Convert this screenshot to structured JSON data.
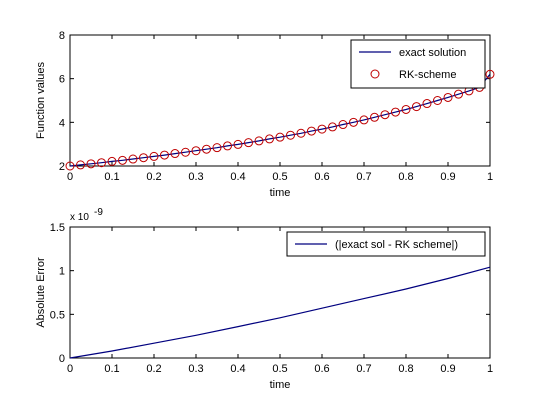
{
  "chart_data": [
    {
      "type": "line",
      "xlabel": "time",
      "ylabel": "Function values",
      "xlim": [
        0,
        1
      ],
      "ylim": [
        2,
        8
      ],
      "xticks": [
        0,
        0.1,
        0.2,
        0.3,
        0.4,
        0.5,
        0.6,
        0.7,
        0.8,
        0.9,
        1
      ],
      "xtick_labels": [
        "0",
        "0.1",
        "0.2",
        "0.3",
        "0.4",
        "0.5",
        "0.6",
        "0.7",
        "0.8",
        "0.9",
        "1"
      ],
      "yticks": [
        2,
        4,
        6,
        8
      ],
      "ytick_labels": [
        "2",
        "4",
        "6",
        "8"
      ],
      "grid": false,
      "legend_position": "top-right",
      "series": [
        {
          "name": "exact solution",
          "style": "line",
          "color": "#00007f",
          "x": [
            0,
            0.025,
            0.05,
            0.075,
            0.1,
            0.125,
            0.15,
            0.175,
            0.2,
            0.225,
            0.25,
            0.275,
            0.3,
            0.325,
            0.35,
            0.375,
            0.4,
            0.425,
            0.45,
            0.475,
            0.5,
            0.525,
            0.55,
            0.575,
            0.6,
            0.625,
            0.65,
            0.675,
            0.7,
            0.725,
            0.75,
            0.775,
            0.8,
            0.825,
            0.85,
            0.875,
            0.9,
            0.925,
            0.95,
            0.975,
            1
          ],
          "y": [
            2.0,
            2.05,
            2.1,
            2.15,
            2.21,
            2.26,
            2.32,
            2.38,
            2.44,
            2.5,
            2.57,
            2.63,
            2.7,
            2.77,
            2.84,
            2.92,
            2.99,
            3.07,
            3.15,
            3.24,
            3.32,
            3.41,
            3.5,
            3.6,
            3.69,
            3.79,
            3.9,
            4.0,
            4.11,
            4.23,
            4.35,
            4.47,
            4.59,
            4.72,
            4.86,
            5.0,
            5.14,
            5.29,
            5.44,
            5.6,
            6.2
          ]
        },
        {
          "name": "RK-scheme",
          "style": "marker-circle",
          "color": "#bf0000",
          "x": [
            0,
            0.025,
            0.05,
            0.075,
            0.1,
            0.125,
            0.15,
            0.175,
            0.2,
            0.225,
            0.25,
            0.275,
            0.3,
            0.325,
            0.35,
            0.375,
            0.4,
            0.425,
            0.45,
            0.475,
            0.5,
            0.525,
            0.55,
            0.575,
            0.6,
            0.625,
            0.65,
            0.675,
            0.7,
            0.725,
            0.75,
            0.775,
            0.8,
            0.825,
            0.85,
            0.875,
            0.9,
            0.925,
            0.95,
            0.975,
            1
          ],
          "y": [
            2.0,
            2.05,
            2.1,
            2.15,
            2.21,
            2.26,
            2.32,
            2.38,
            2.44,
            2.5,
            2.57,
            2.63,
            2.7,
            2.77,
            2.84,
            2.92,
            2.99,
            3.07,
            3.15,
            3.24,
            3.32,
            3.41,
            3.5,
            3.6,
            3.69,
            3.79,
            3.9,
            4.0,
            4.11,
            4.23,
            4.35,
            4.47,
            4.59,
            4.72,
            4.86,
            5.0,
            5.14,
            5.29,
            5.44,
            5.6,
            6.2
          ]
        }
      ]
    },
    {
      "type": "line",
      "xlabel": "time",
      "ylabel": "Absolute Error",
      "y_exponent_label": "x 10",
      "y_exponent_power": "-9",
      "xlim": [
        0,
        1
      ],
      "ylim": [
        0,
        1.5
      ],
      "xticks": [
        0,
        0.1,
        0.2,
        0.3,
        0.4,
        0.5,
        0.6,
        0.7,
        0.8,
        0.9,
        1
      ],
      "xtick_labels": [
        "0",
        "0.1",
        "0.2",
        "0.3",
        "0.4",
        "0.5",
        "0.6",
        "0.7",
        "0.8",
        "0.9",
        "1"
      ],
      "yticks": [
        0,
        0.5,
        1,
        1.5
      ],
      "ytick_labels": [
        "0",
        "0.5",
        "1",
        "1.5"
      ],
      "grid": false,
      "legend_position": "top-right",
      "series": [
        {
          "name": "(|exact sol - RK scheme|)",
          "style": "line",
          "color": "#00007f",
          "x": [
            0,
            0.1,
            0.2,
            0.3,
            0.4,
            0.5,
            0.6,
            0.7,
            0.8,
            0.9,
            1
          ],
          "y": [
            0,
            0.08,
            0.17,
            0.26,
            0.36,
            0.46,
            0.57,
            0.68,
            0.79,
            0.91,
            1.04
          ]
        }
      ]
    }
  ]
}
